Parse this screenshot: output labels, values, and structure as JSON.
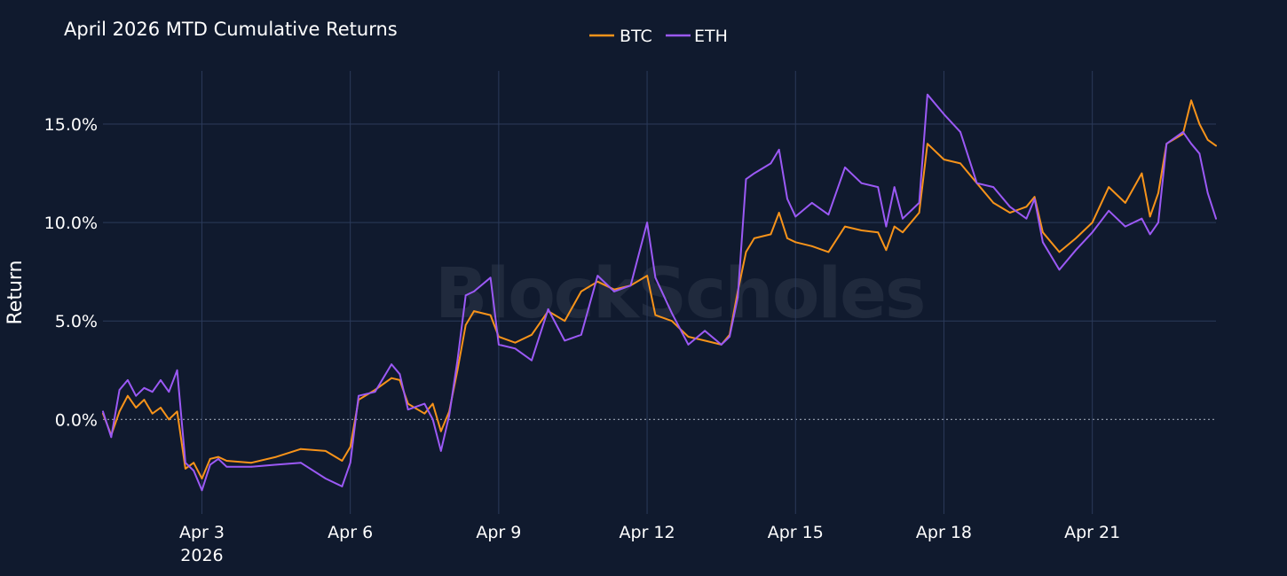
{
  "chart_data": {
    "type": "line",
    "title": "April 2026 MTD Cumulative Returns",
    "xlabel": "",
    "ylabel": "Return",
    "watermark": "BlockScholes",
    "x_range": [
      "2026-04-01T00:00",
      "2026-04-23T12:00"
    ],
    "x_ticks": [
      {
        "date": "2026-04-03",
        "label": "Apr 3",
        "sublabel": "2026"
      },
      {
        "date": "2026-04-06",
        "label": "Apr 6"
      },
      {
        "date": "2026-04-09",
        "label": "Apr 9"
      },
      {
        "date": "2026-04-12",
        "label": "Apr 12"
      },
      {
        "date": "2026-04-15",
        "label": "Apr 15"
      },
      {
        "date": "2026-04-18",
        "label": "Apr 18"
      },
      {
        "date": "2026-04-21",
        "label": "Apr 21"
      }
    ],
    "ylim": [
      -4.8,
      17.7
    ],
    "y_ticks": [
      {
        "value": 0,
        "label": "0.0%"
      },
      {
        "value": 5,
        "label": "5.0%"
      },
      {
        "value": 10,
        "label": "10.0%"
      },
      {
        "value": 15,
        "label": "15.0%"
      }
    ],
    "zero_line": true,
    "grid": true,
    "legend_position": "top-center",
    "series": [
      {
        "name": "BTC",
        "color": "#f7931a",
        "points": [
          [
            "2026-04-01T00:00",
            0.3
          ],
          [
            "2026-04-01T04:00",
            -0.8
          ],
          [
            "2026-04-01T08:00",
            0.4
          ],
          [
            "2026-04-01T12:00",
            1.2
          ],
          [
            "2026-04-01T16:00",
            0.6
          ],
          [
            "2026-04-01T20:00",
            1.0
          ],
          [
            "2026-04-02T00:00",
            0.3
          ],
          [
            "2026-04-02T04:00",
            0.6
          ],
          [
            "2026-04-02T08:00",
            0.0
          ],
          [
            "2026-04-02T12:00",
            0.4
          ],
          [
            "2026-04-02T16:00",
            -2.5
          ],
          [
            "2026-04-02T20:00",
            -2.2
          ],
          [
            "2026-04-03T00:00",
            -3.0
          ],
          [
            "2026-04-03T04:00",
            -2.0
          ],
          [
            "2026-04-03T08:00",
            -1.9
          ],
          [
            "2026-04-03T12:00",
            -2.1
          ],
          [
            "2026-04-04T00:00",
            -2.2
          ],
          [
            "2026-04-04T12:00",
            -1.9
          ],
          [
            "2026-04-05T00:00",
            -1.5
          ],
          [
            "2026-04-05T12:00",
            -1.6
          ],
          [
            "2026-04-05T20:00",
            -2.1
          ],
          [
            "2026-04-06T00:00",
            -1.4
          ],
          [
            "2026-04-06T04:00",
            1.0
          ],
          [
            "2026-04-06T12:00",
            1.5
          ],
          [
            "2026-04-06T20:00",
            2.1
          ],
          [
            "2026-04-07T00:00",
            2.0
          ],
          [
            "2026-04-07T04:00",
            0.8
          ],
          [
            "2026-04-07T12:00",
            0.3
          ],
          [
            "2026-04-07T16:00",
            0.8
          ],
          [
            "2026-04-07T20:00",
            -0.6
          ],
          [
            "2026-04-08T00:00",
            0.4
          ],
          [
            "2026-04-08T04:00",
            2.5
          ],
          [
            "2026-04-08T08:00",
            4.8
          ],
          [
            "2026-04-08T12:00",
            5.5
          ],
          [
            "2026-04-08T20:00",
            5.3
          ],
          [
            "2026-04-09T00:00",
            4.2
          ],
          [
            "2026-04-09T08:00",
            3.9
          ],
          [
            "2026-04-09T16:00",
            4.3
          ],
          [
            "2026-04-10T00:00",
            5.5
          ],
          [
            "2026-04-10T08:00",
            5.0
          ],
          [
            "2026-04-10T16:00",
            6.5
          ],
          [
            "2026-04-11T00:00",
            7.0
          ],
          [
            "2026-04-11T08:00",
            6.6
          ],
          [
            "2026-04-11T16:00",
            6.8
          ],
          [
            "2026-04-12T00:00",
            7.3
          ],
          [
            "2026-04-12T04:00",
            5.3
          ],
          [
            "2026-04-12T12:00",
            5.0
          ],
          [
            "2026-04-12T20:00",
            4.2
          ],
          [
            "2026-04-13T04:00",
            4.0
          ],
          [
            "2026-04-13T12:00",
            3.8
          ],
          [
            "2026-04-13T16:00",
            4.3
          ],
          [
            "2026-04-13T20:00",
            6.5
          ],
          [
            "2026-04-14T00:00",
            8.5
          ],
          [
            "2026-04-14T04:00",
            9.2
          ],
          [
            "2026-04-14T12:00",
            9.4
          ],
          [
            "2026-04-14T16:00",
            10.5
          ],
          [
            "2026-04-14T20:00",
            9.2
          ],
          [
            "2026-04-15T00:00",
            9.0
          ],
          [
            "2026-04-15T08:00",
            8.8
          ],
          [
            "2026-04-15T16:00",
            8.5
          ],
          [
            "2026-04-16T00:00",
            9.8
          ],
          [
            "2026-04-16T08:00",
            9.6
          ],
          [
            "2026-04-16T16:00",
            9.5
          ],
          [
            "2026-04-16T20:00",
            8.6
          ],
          [
            "2026-04-17T00:00",
            9.8
          ],
          [
            "2026-04-17T04:00",
            9.5
          ],
          [
            "2026-04-17T12:00",
            10.5
          ],
          [
            "2026-04-17T16:00",
            14.0
          ],
          [
            "2026-04-18T00:00",
            13.2
          ],
          [
            "2026-04-18T08:00",
            13.0
          ],
          [
            "2026-04-18T16:00",
            12.0
          ],
          [
            "2026-04-19T00:00",
            11.0
          ],
          [
            "2026-04-19T08:00",
            10.5
          ],
          [
            "2026-04-19T16:00",
            10.8
          ],
          [
            "2026-04-19T20:00",
            11.3
          ],
          [
            "2026-04-20T00:00",
            9.5
          ],
          [
            "2026-04-20T08:00",
            8.5
          ],
          [
            "2026-04-20T16:00",
            9.2
          ],
          [
            "2026-04-21T00:00",
            10.0
          ],
          [
            "2026-04-21T08:00",
            11.8
          ],
          [
            "2026-04-21T16:00",
            11.0
          ],
          [
            "2026-04-22T00:00",
            12.5
          ],
          [
            "2026-04-22T04:00",
            10.3
          ],
          [
            "2026-04-22T08:00",
            11.5
          ],
          [
            "2026-04-22T12:00",
            14.0
          ],
          [
            "2026-04-22T20:00",
            14.5
          ],
          [
            "2026-04-23T00:00",
            16.2
          ],
          [
            "2026-04-23T04:00",
            15.0
          ],
          [
            "2026-04-23T08:00",
            14.2
          ],
          [
            "2026-04-23T12:00",
            13.9
          ]
        ]
      },
      {
        "name": "ETH",
        "color": "#9b59f5",
        "points": [
          [
            "2026-04-01T00:00",
            0.4
          ],
          [
            "2026-04-01T04:00",
            -0.9
          ],
          [
            "2026-04-01T08:00",
            1.5
          ],
          [
            "2026-04-01T12:00",
            2.0
          ],
          [
            "2026-04-01T16:00",
            1.2
          ],
          [
            "2026-04-01T20:00",
            1.6
          ],
          [
            "2026-04-02T00:00",
            1.4
          ],
          [
            "2026-04-02T04:00",
            2.0
          ],
          [
            "2026-04-02T08:00",
            1.4
          ],
          [
            "2026-04-02T12:00",
            2.5
          ],
          [
            "2026-04-02T16:00",
            -2.2
          ],
          [
            "2026-04-02T20:00",
            -2.6
          ],
          [
            "2026-04-03T00:00",
            -3.6
          ],
          [
            "2026-04-03T04:00",
            -2.3
          ],
          [
            "2026-04-03T08:00",
            -2.0
          ],
          [
            "2026-04-03T12:00",
            -2.4
          ],
          [
            "2026-04-04T00:00",
            -2.4
          ],
          [
            "2026-04-04T12:00",
            -2.3
          ],
          [
            "2026-04-05T00:00",
            -2.2
          ],
          [
            "2026-04-05T12:00",
            -3.0
          ],
          [
            "2026-04-05T20:00",
            -3.4
          ],
          [
            "2026-04-06T00:00",
            -2.2
          ],
          [
            "2026-04-06T04:00",
            1.2
          ],
          [
            "2026-04-06T12:00",
            1.4
          ],
          [
            "2026-04-06T20:00",
            2.8
          ],
          [
            "2026-04-07T00:00",
            2.3
          ],
          [
            "2026-04-07T04:00",
            0.5
          ],
          [
            "2026-04-07T12:00",
            0.8
          ],
          [
            "2026-04-07T16:00",
            0.0
          ],
          [
            "2026-04-07T20:00",
            -1.6
          ],
          [
            "2026-04-08T00:00",
            0.2
          ],
          [
            "2026-04-08T04:00",
            3.0
          ],
          [
            "2026-04-08T08:00",
            6.3
          ],
          [
            "2026-04-08T12:00",
            6.5
          ],
          [
            "2026-04-08T20:00",
            7.2
          ],
          [
            "2026-04-09T00:00",
            3.8
          ],
          [
            "2026-04-09T08:00",
            3.6
          ],
          [
            "2026-04-09T16:00",
            3.0
          ],
          [
            "2026-04-10T00:00",
            5.6
          ],
          [
            "2026-04-10T08:00",
            4.0
          ],
          [
            "2026-04-10T16:00",
            4.3
          ],
          [
            "2026-04-11T00:00",
            7.3
          ],
          [
            "2026-04-11T08:00",
            6.5
          ],
          [
            "2026-04-11T16:00",
            6.8
          ],
          [
            "2026-04-12T00:00",
            10.0
          ],
          [
            "2026-04-12T04:00",
            7.2
          ],
          [
            "2026-04-12T12:00",
            5.4
          ],
          [
            "2026-04-12T20:00",
            3.8
          ],
          [
            "2026-04-13T04:00",
            4.5
          ],
          [
            "2026-04-13T12:00",
            3.8
          ],
          [
            "2026-04-13T16:00",
            4.2
          ],
          [
            "2026-04-13T20:00",
            6.2
          ],
          [
            "2026-04-14T00:00",
            12.2
          ],
          [
            "2026-04-14T04:00",
            12.5
          ],
          [
            "2026-04-14T12:00",
            13.0
          ],
          [
            "2026-04-14T16:00",
            13.7
          ],
          [
            "2026-04-14T20:00",
            11.2
          ],
          [
            "2026-04-15T00:00",
            10.3
          ],
          [
            "2026-04-15T08:00",
            11.0
          ],
          [
            "2026-04-15T16:00",
            10.4
          ],
          [
            "2026-04-16T00:00",
            12.8
          ],
          [
            "2026-04-16T08:00",
            12.0
          ],
          [
            "2026-04-16T16:00",
            11.8
          ],
          [
            "2026-04-16T20:00",
            9.8
          ],
          [
            "2026-04-17T00:00",
            11.8
          ],
          [
            "2026-04-17T04:00",
            10.2
          ],
          [
            "2026-04-17T12:00",
            11.0
          ],
          [
            "2026-04-17T16:00",
            16.5
          ],
          [
            "2026-04-18T00:00",
            15.5
          ],
          [
            "2026-04-18T08:00",
            14.6
          ],
          [
            "2026-04-18T16:00",
            12.0
          ],
          [
            "2026-04-19T00:00",
            11.8
          ],
          [
            "2026-04-19T08:00",
            10.8
          ],
          [
            "2026-04-19T16:00",
            10.2
          ],
          [
            "2026-04-19T20:00",
            11.2
          ],
          [
            "2026-04-20T00:00",
            9.0
          ],
          [
            "2026-04-20T08:00",
            7.6
          ],
          [
            "2026-04-20T16:00",
            8.6
          ],
          [
            "2026-04-21T00:00",
            9.5
          ],
          [
            "2026-04-21T08:00",
            10.6
          ],
          [
            "2026-04-21T16:00",
            9.8
          ],
          [
            "2026-04-22T00:00",
            10.2
          ],
          [
            "2026-04-22T04:00",
            9.4
          ],
          [
            "2026-04-22T08:00",
            10.0
          ],
          [
            "2026-04-22T12:00",
            14.0
          ],
          [
            "2026-04-22T20:00",
            14.6
          ],
          [
            "2026-04-23T00:00",
            14.0
          ],
          [
            "2026-04-23T04:00",
            13.5
          ],
          [
            "2026-04-23T08:00",
            11.5
          ],
          [
            "2026-04-23T12:00",
            10.2
          ]
        ]
      }
    ]
  }
}
